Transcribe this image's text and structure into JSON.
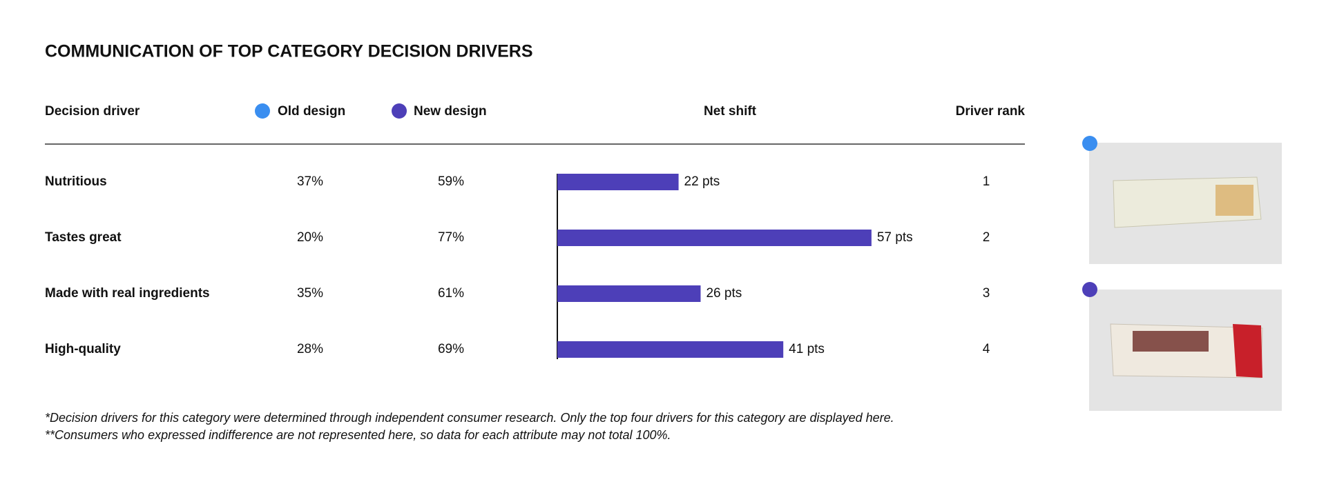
{
  "chart_data": {
    "type": "bar",
    "title": "COMMUNICATION OF TOP CATEGORY DECISION DRIVERS",
    "columns": {
      "driver": "Decision driver",
      "old": "Old design",
      "new": "New design",
      "shift": "Net shift",
      "rank": "Driver rank"
    },
    "categories": [
      "Nutritious",
      "Tastes great",
      "Made with real ingredients",
      "High-quality"
    ],
    "old_design": [
      "37%",
      "20%",
      "35%",
      "28%"
    ],
    "new_design": [
      "59%",
      "77%",
      "61%",
      "69%"
    ],
    "values": [
      22,
      57,
      26,
      41
    ],
    "value_labels": [
      "22 pts",
      "57 pts",
      "26 pts",
      "41 pts"
    ],
    "ranks": [
      1,
      2,
      3,
      4
    ],
    "color": "#4d3fb8",
    "old_color": "#3a8ef0",
    "new_color": "#4d3fb8",
    "footnotes": [
      "*Decision drivers for this category were determined through independent consumer research. Only the top four drivers for this category are displayed here.",
      "**Consumers who expressed indifference are not represented here, so data for each attribute may not total 100%."
    ]
  }
}
